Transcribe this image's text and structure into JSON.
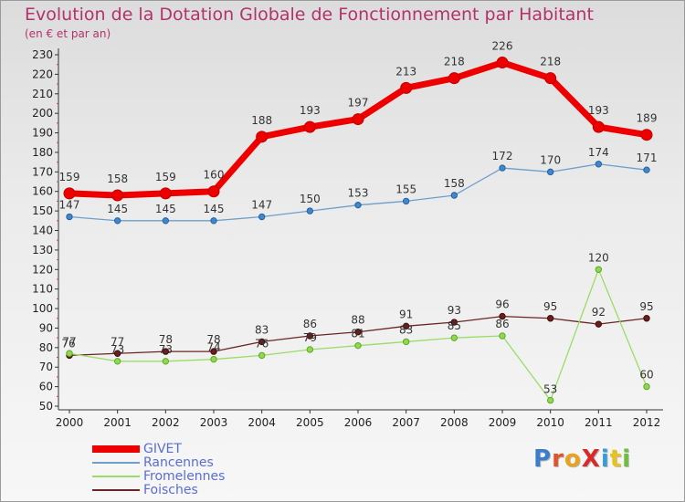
{
  "title": "Evolution de la Dotation Globale de Fonctionnement par Habitant",
  "subtitle": "(en € et par an)",
  "logo": {
    "text": "ProXiti",
    "colors": [
      "#3a7ec9",
      "#e0542a",
      "#e8a21e",
      "#d92a2a",
      "#3a9bd5",
      "#e8c21e",
      "#6dbf3a"
    ]
  },
  "chart_data": {
    "type": "line",
    "title": "Evolution de la Dotation Globale de Fonctionnement par Habitant",
    "subtitle": "(en € et par an)",
    "xlabel": "",
    "ylabel": "",
    "x": [
      "2000",
      "2001",
      "2002",
      "2003",
      "2004",
      "2005",
      "2006",
      "2007",
      "2008",
      "2009",
      "2010",
      "2011",
      "2012"
    ],
    "ylim": [
      45,
      233
    ],
    "yticks": [
      50,
      60,
      70,
      80,
      90,
      100,
      110,
      120,
      130,
      140,
      150,
      160,
      170,
      180,
      190,
      200,
      210,
      220,
      230
    ],
    "grid": false,
    "legend": "bottom-left",
    "series": [
      {
        "name": "GIVET",
        "color": "#ee0000",
        "values": [
          159,
          158,
          159,
          160,
          188,
          193,
          197,
          213,
          218,
          226,
          218,
          193,
          189
        ]
      },
      {
        "name": "Rancennes",
        "color": "#6e9fcc",
        "values": [
          147,
          145,
          145,
          145,
          147,
          150,
          153,
          155,
          158,
          172,
          170,
          174,
          171
        ]
      },
      {
        "name": "Fromelennes",
        "color": "#99dd66",
        "values": [
          77,
          73,
          73,
          74,
          76,
          79,
          81,
          83,
          85,
          86,
          53,
          120,
          60
        ]
      },
      {
        "name": "Foisches",
        "color": "#6b2525",
        "values": [
          76,
          77,
          78,
          78,
          83,
          86,
          88,
          91,
          93,
          96,
          95,
          92,
          95
        ]
      }
    ]
  }
}
